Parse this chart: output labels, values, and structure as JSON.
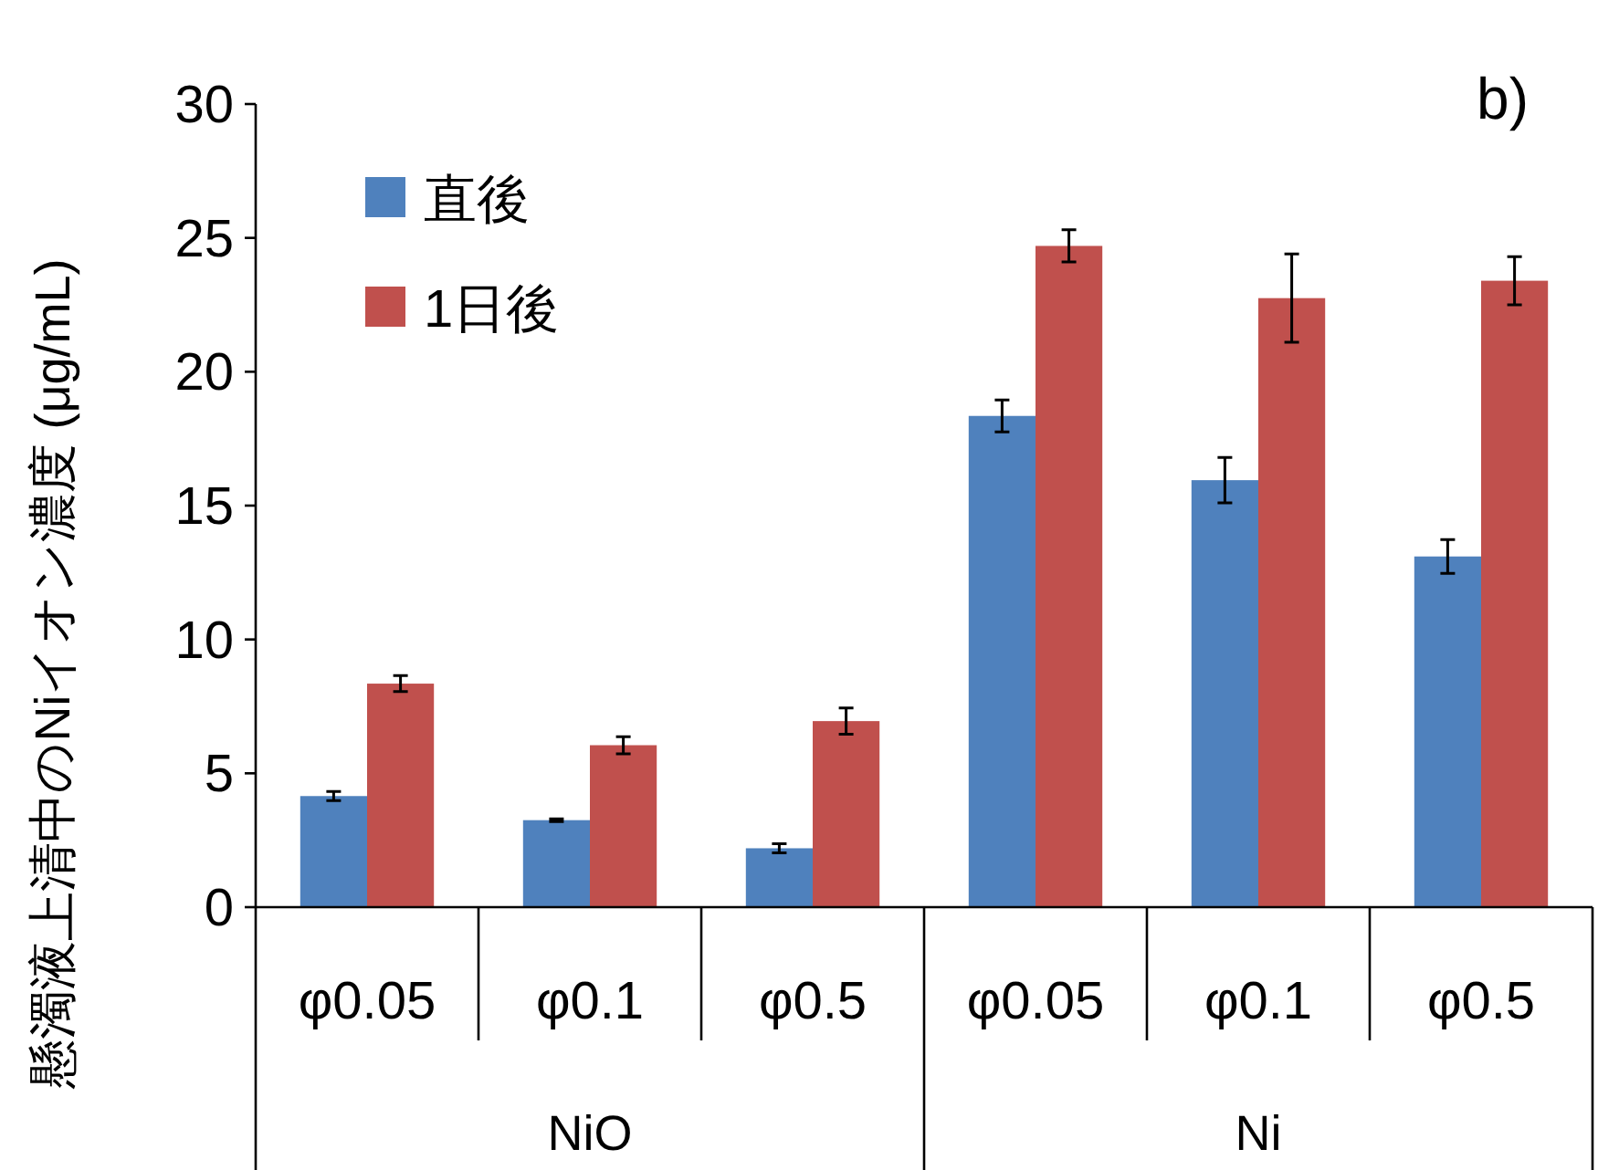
{
  "chart_data": {
    "type": "bar",
    "ylabel": "懸濁液上清中のNiイオン濃度 (μg/mL)",
    "categories": [
      "φ0.05",
      "φ0.1",
      "φ0.5",
      "φ0.05",
      "φ0.1",
      "φ0.5"
    ],
    "series": [
      {
        "name": "直後",
        "color": "#4f81bd",
        "values": [
          4.15,
          3.25,
          2.2,
          18.35,
          15.95,
          13.1
        ],
        "errors": [
          0.17,
          0.05,
          0.17,
          0.6,
          0.85,
          0.63
        ]
      },
      {
        "name": "1日後",
        "color": "#c0504d",
        "values": [
          8.35,
          6.05,
          6.95,
          24.7,
          22.75,
          23.4
        ],
        "errors": [
          0.3,
          0.32,
          0.49,
          0.6,
          1.65,
          0.9
        ]
      }
    ],
    "ylim": [
      0,
      30
    ],
    "yticks": [
      0,
      5,
      10,
      15,
      20,
      25,
      30
    ],
    "grid": false,
    "legend": "top left",
    "annotations": [
      "b)",
      "NiO",
      "Ni"
    ]
  }
}
